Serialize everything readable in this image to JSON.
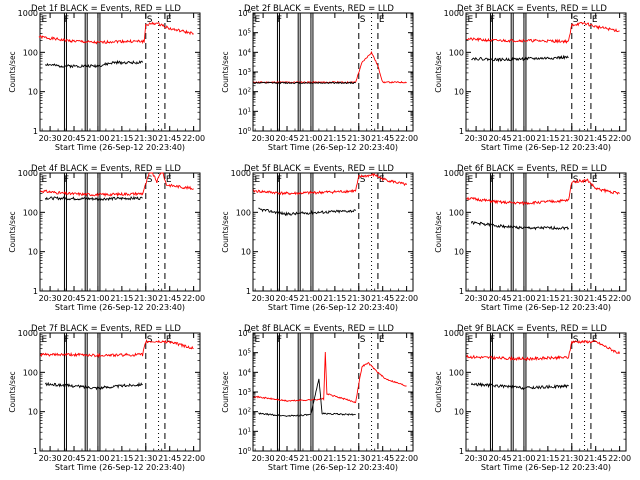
{
  "figure": {
    "panels": [
      {
        "title": "Det 1f  BLACK = Events, RED = LLD",
        "xlabel": "Start Time (26-Sep-12 20:23:40)",
        "ylabel": "Counts/sec"
      },
      {
        "title": "Det 2f  BLACK = Events, RED = LLD",
        "xlabel": "Start Time (26-Sep-12 20:23:40)",
        "ylabel": "Counts/sec"
      },
      {
        "title": "Det 3f  BLACK = Events, RED = LLD",
        "xlabel": "Start Time (26-Sep-12 20:23:40)",
        "ylabel": "Counts/sec"
      },
      {
        "title": "Det 4f  BLACK = Events, RED = LLD",
        "xlabel": "Start Time (26-Sep-12 20:23:40)",
        "ylabel": "Counts/sec"
      },
      {
        "title": "Det 5f  BLACK = Events, RED = LLD",
        "xlabel": "Start Time (26-Sep-12 20:23:40)",
        "ylabel": "Counts/sec"
      },
      {
        "title": "Det 6f  BLACK = Events, RED = LLD",
        "xlabel": "Start Time (26-Sep-12 20:23:40)",
        "ylabel": "Counts/sec"
      },
      {
        "title": "Det 7f  BLACK = Events, RED = LLD",
        "xlabel": "Start Time (26-Sep-12 20:23:40)",
        "ylabel": "Counts/sec"
      },
      {
        "title": "Det 8f  BLACK = Events, RED = LLD",
        "xlabel": "Start Time (26-Sep-12 20:23:40)",
        "ylabel": "Counts/sec"
      },
      {
        "title": "Det 9f  BLACK = Events, RED = LLD",
        "xlabel": "Start Time (26-Sep-12 20:23:40)",
        "ylabel": "Counts/sec"
      }
    ]
  },
  "chart_data": [
    {
      "type": "line",
      "x": [
        "20:30",
        "20:45",
        "21:00",
        "21:15",
        "21:30",
        "21:45",
        "22:00"
      ],
      "xlim": [
        "20:23:40",
        "22:04"
      ],
      "ylim": [
        1,
        1000
      ],
      "yscale": "log",
      "yticks": [
        "1",
        "10",
        "100",
        "1000"
      ],
      "markers": {
        "solid": [
          "20:39",
          "20:52",
          "21:00"
        ],
        "dashed": [
          "21:30",
          "21:42"
        ],
        "dotted": [
          "21:38"
        ],
        "letters": {
          "E": "20:24",
          "F": "20:38",
          "S": "21:30",
          "E2": "21:42"
        }
      },
      "series": [
        {
          "color": "#ff0000",
          "x": [
            "20:23",
            "20:40",
            "21:00",
            "21:10",
            "21:29",
            "21:30",
            "21:36",
            "21:40",
            "21:45",
            "22:00"
          ],
          "y": [
            250,
            200,
            175,
            190,
            190,
            500,
            550,
            500,
            400,
            300
          ]
        },
        {
          "color": "#000000",
          "x": [
            "20:27",
            "20:35",
            "21:00",
            "21:10",
            "21:28"
          ],
          "y": [
            50,
            45,
            45,
            55,
            55
          ]
        }
      ]
    },
    {
      "type": "line",
      "x": [
        "20:30",
        "20:45",
        "21:00",
        "21:15",
        "21:30",
        "21:45",
        "22:00"
      ],
      "xlim": [
        "20:23:40",
        "22:04"
      ],
      "ylim": [
        1,
        1000000
      ],
      "yscale": "log",
      "yticks": [
        "10^0",
        "10^1",
        "10^2",
        "10^3",
        "10^4",
        "10^5",
        "10^6"
      ],
      "markers": {
        "solid": [
          "20:39",
          "20:52",
          "21:00"
        ],
        "dashed": [
          "21:30",
          "21:42"
        ],
        "dotted": [
          "21:38"
        ],
        "letters": {
          "E": "20:24",
          "F": "20:38",
          "S": "21:30",
          "E2": "21:42"
        }
      },
      "series": [
        {
          "color": "#ff0000",
          "x": [
            "20:24",
            "21:10",
            "21:28",
            "21:32",
            "21:38",
            "21:42",
            "21:45",
            "22:00"
          ],
          "y": [
            300,
            300,
            300,
            3000,
            10000,
            2000,
            300,
            300
          ]
        },
        {
          "color": "#000000",
          "x": [
            "20:24",
            "21:28"
          ],
          "y": [
            280,
            280
          ]
        }
      ]
    },
    {
      "type": "line",
      "x": [
        "20:30",
        "20:45",
        "21:00",
        "21:15",
        "21:30",
        "21:45",
        "22:00"
      ],
      "xlim": [
        "20:23:40",
        "22:04"
      ],
      "ylim": [
        1,
        1000
      ],
      "yscale": "log",
      "yticks": [
        "1",
        "10",
        "100",
        "1000"
      ],
      "markers": {
        "solid": [
          "20:39",
          "20:52",
          "21:00"
        ],
        "dashed": [
          "21:30",
          "21:42"
        ],
        "dotted": [
          "21:38"
        ],
        "letters": {
          "E": "20:24",
          "F": "20:38",
          "S": "21:30",
          "E2": "21:42"
        }
      },
      "series": [
        {
          "color": "#ff0000",
          "x": [
            "20:24",
            "20:40",
            "21:00",
            "21:28",
            "21:30",
            "21:38",
            "21:45",
            "22:00"
          ],
          "y": [
            220,
            200,
            200,
            190,
            500,
            550,
            450,
            350
          ]
        },
        {
          "color": "#000000",
          "x": [
            "20:27",
            "20:45",
            "21:10",
            "21:28"
          ],
          "y": [
            70,
            65,
            70,
            75
          ]
        }
      ]
    },
    {
      "type": "line",
      "x": [
        "20:30",
        "20:45",
        "21:00",
        "21:15",
        "21:30",
        "21:45",
        "22:00"
      ],
      "xlim": [
        "20:23:40",
        "22:04"
      ],
      "ylim": [
        1,
        1000
      ],
      "yscale": "log",
      "yticks": [
        "1",
        "10",
        "100",
        "1000"
      ],
      "markers": {
        "solid": [
          "20:39",
          "20:52",
          "21:00"
        ],
        "dashed": [
          "21:30",
          "21:42"
        ],
        "dotted": [
          "21:38"
        ],
        "letters": {
          "E": "20:24",
          "F": "20:38",
          "S": "21:30",
          "E2": "21:42"
        }
      },
      "series": [
        {
          "color": "#ff0000",
          "x": [
            "20:24",
            "20:40",
            "21:00",
            "21:28",
            "21:33",
            "21:37",
            "21:40",
            "21:43",
            "22:00"
          ],
          "y": [
            350,
            300,
            280,
            300,
            1200,
            600,
            1200,
            500,
            400
          ]
        },
        {
          "color": "#000000",
          "x": [
            "20:27",
            "21:00",
            "21:28"
          ],
          "y": [
            230,
            220,
            230
          ]
        }
      ]
    },
    {
      "type": "line",
      "x": [
        "20:30",
        "20:45",
        "21:00",
        "21:15",
        "21:30",
        "21:45",
        "22:00"
      ],
      "xlim": [
        "20:23:40",
        "22:04"
      ],
      "ylim": [
        1,
        1000
      ],
      "yscale": "log",
      "yticks": [
        "1",
        "10",
        "100",
        "1000"
      ],
      "markers": {
        "solid": [
          "20:39",
          "20:52",
          "21:00"
        ],
        "dashed": [
          "21:30",
          "21:42"
        ],
        "dotted": [
          "21:38"
        ],
        "letters": {
          "E": "20:24",
          "F": "20:38",
          "S": "21:30",
          "E2": "21:42"
        }
      },
      "series": [
        {
          "color": "#ff0000",
          "x": [
            "20:24",
            "20:45",
            "21:05",
            "21:28",
            "21:30",
            "21:40",
            "21:45",
            "22:00"
          ],
          "y": [
            350,
            300,
            320,
            350,
            800,
            900,
            700,
            500
          ]
        },
        {
          "color": "#000000",
          "x": [
            "20:27",
            "20:45",
            "21:05",
            "21:28"
          ],
          "y": [
            120,
            90,
            100,
            110
          ]
        }
      ]
    },
    {
      "type": "line",
      "x": [
        "20:30",
        "20:45",
        "21:00",
        "21:15",
        "21:30",
        "21:45",
        "22:00"
      ],
      "xlim": [
        "20:23:40",
        "22:04"
      ],
      "ylim": [
        1,
        1000
      ],
      "yscale": "log",
      "yticks": [
        "1",
        "10",
        "100",
        "1000"
      ],
      "markers": {
        "solid": [
          "20:39",
          "20:52",
          "21:00"
        ],
        "dashed": [
          "21:30",
          "21:42"
        ],
        "dotted": [
          "21:38"
        ],
        "letters": {
          "E": "20:24",
          "F": "20:38",
          "S": "21:30",
          "E2": "21:42"
        }
      },
      "series": [
        {
          "color": "#ff0000",
          "x": [
            "20:24",
            "20:45",
            "21:00",
            "21:28",
            "21:30",
            "21:40",
            "21:45",
            "22:00"
          ],
          "y": [
            230,
            180,
            170,
            200,
            600,
            650,
            400,
            300
          ]
        },
        {
          "color": "#000000",
          "x": [
            "20:27",
            "20:45",
            "21:00",
            "21:28"
          ],
          "y": [
            55,
            45,
            40,
            40
          ]
        }
      ]
    },
    {
      "type": "line",
      "x": [
        "20:30",
        "20:45",
        "21:00",
        "21:15",
        "21:30",
        "21:45",
        "22:00"
      ],
      "xlim": [
        "20:23:40",
        "22:04"
      ],
      "ylim": [
        1,
        1000
      ],
      "yscale": "log",
      "yticks": [
        "1",
        "10",
        "100",
        "1000"
      ],
      "markers": {
        "solid": [
          "20:39",
          "20:52",
          "21:00"
        ],
        "dashed": [
          "21:30",
          "21:42"
        ],
        "dotted": [
          "21:38"
        ],
        "letters": {
          "E": "20:24",
          "F": "20:38",
          "S": "21:30",
          "E2": "21:42"
        }
      },
      "series": [
        {
          "color": "#ff0000",
          "x": [
            "20:24",
            "20:45",
            "21:00",
            "21:28",
            "21:30",
            "21:45",
            "22:00"
          ],
          "y": [
            280,
            280,
            270,
            280,
            600,
            600,
            400
          ]
        },
        {
          "color": "#000000",
          "x": [
            "20:27",
            "20:45",
            "21:00",
            "21:28"
          ],
          "y": [
            50,
            45,
            40,
            50
          ]
        }
      ]
    },
    {
      "type": "line",
      "x": [
        "20:30",
        "20:45",
        "21:00",
        "21:15",
        "21:30",
        "21:45",
        "22:00"
      ],
      "xlim": [
        "20:23:40",
        "22:04"
      ],
      "ylim": [
        1,
        1000000
      ],
      "yscale": "log",
      "yticks": [
        "10^0",
        "10^1",
        "10^2",
        "10^3",
        "10^4",
        "10^5",
        "10^6"
      ],
      "markers": {
        "solid": [
          "20:39",
          "20:52",
          "21:00"
        ],
        "dashed": [
          "21:30",
          "21:42"
        ],
        "dotted": [
          "21:38"
        ],
        "letters": {
          "E": "20:24",
          "F": "20:38",
          "S": "21:30",
          "E2": "21:42"
        }
      },
      "series": [
        {
          "color": "#ff0000",
          "x": [
            "20:24",
            "20:45",
            "21:00",
            "21:08",
            "21:09",
            "21:10",
            "21:28",
            "21:32",
            "21:36",
            "21:42",
            "21:46",
            "22:00"
          ],
          "y": [
            600,
            350,
            400,
            450,
            100000,
            800,
            300,
            20000,
            30000,
            10000,
            5000,
            2000
          ]
        },
        {
          "color": "#000000",
          "x": [
            "20:27",
            "20:45",
            "21:00",
            "21:05",
            "21:07",
            "21:28"
          ],
          "y": [
            80,
            60,
            70,
            5000,
            80,
            70
          ]
        }
      ]
    },
    {
      "type": "line",
      "x": [
        "20:30",
        "20:45",
        "21:00",
        "21:15",
        "21:30",
        "21:45",
        "22:00"
      ],
      "xlim": [
        "20:23:40",
        "22:04"
      ],
      "ylim": [
        1,
        1000
      ],
      "yscale": "log",
      "yticks": [
        "1",
        "10",
        "100",
        "1000"
      ],
      "markers": {
        "solid": [
          "20:39",
          "20:52",
          "21:00"
        ],
        "dashed": [
          "21:30",
          "21:42"
        ],
        "dotted": [
          "21:38"
        ],
        "letters": {
          "E": "20:24",
          "F": "20:38",
          "S": "21:30",
          "E2": "21:42"
        }
      },
      "series": [
        {
          "color": "#ff0000",
          "x": [
            "20:24",
            "20:45",
            "21:00",
            "21:28",
            "21:30",
            "21:45",
            "22:00"
          ],
          "y": [
            250,
            230,
            220,
            240,
            600,
            600,
            300
          ]
        },
        {
          "color": "#000000",
          "x": [
            "20:27",
            "20:45",
            "21:00",
            "21:28"
          ],
          "y": [
            50,
            45,
            40,
            45
          ]
        }
      ]
    }
  ]
}
